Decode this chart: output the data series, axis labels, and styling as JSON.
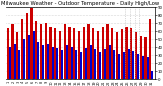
{
  "title": "Milwaukee Weather - Outdoor Temperature - Daily High/Low",
  "highs": [
    63,
    68,
    58,
    75,
    82,
    88,
    72,
    68,
    70,
    65,
    63,
    60,
    68,
    65,
    63,
    60,
    65,
    68,
    63,
    60,
    65,
    68,
    63,
    58,
    62,
    65,
    63,
    58,
    54,
    52,
    75
  ],
  "lows": [
    40,
    44,
    36,
    50,
    55,
    60,
    46,
    42,
    44,
    40,
    38,
    36,
    42,
    40,
    36,
    33,
    39,
    42,
    37,
    33,
    37,
    42,
    36,
    31,
    33,
    37,
    35,
    31,
    29,
    27,
    10
  ],
  "n_bars": 31,
  "high_color": "#cc0000",
  "low_color": "#0000cc",
  "bg_color": "#ffffff",
  "ylim_min": 0,
  "ylim_max": 90,
  "ytick_labels": [
    "0",
    "10",
    "20",
    "30",
    "40",
    "50",
    "60",
    "70",
    "80",
    "90"
  ],
  "ytick_vals": [
    0,
    10,
    20,
    30,
    40,
    50,
    60,
    70,
    80,
    90
  ],
  "bar_width": 0.45,
  "title_fontsize": 3.8,
  "tick_fontsize": 2.8,
  "grid_color": "#aaaaaa",
  "dashed_vlines": [
    24,
    25,
    26,
    27
  ]
}
